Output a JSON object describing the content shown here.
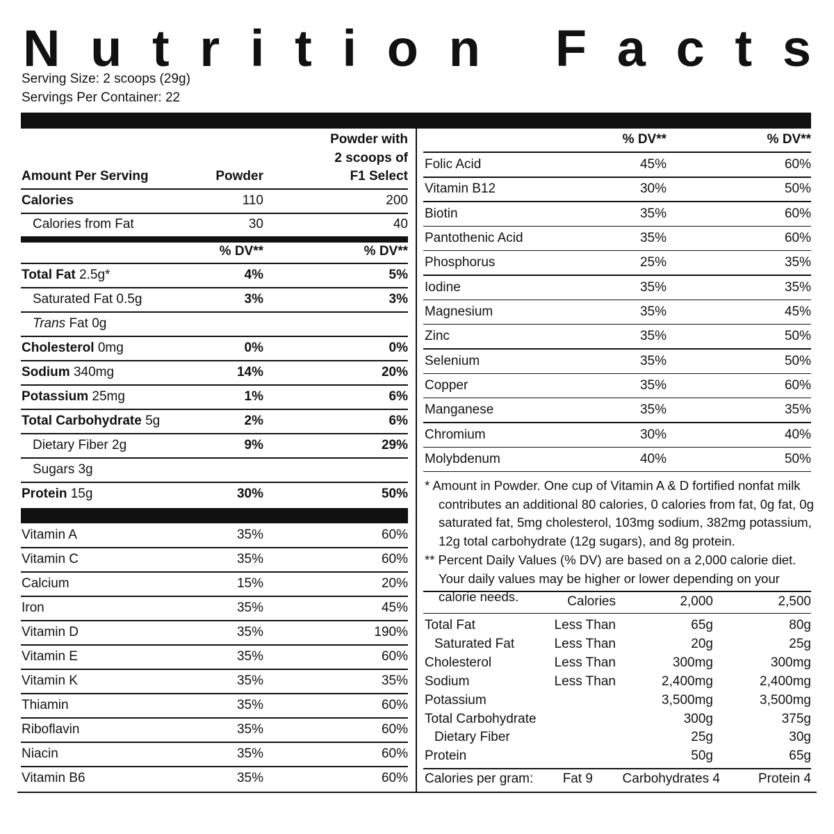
{
  "header": {
    "title": "Nutrition Facts",
    "serving_size": "Serving Size: 2 scoops (29g)",
    "servings_per_container": "Servings Per Container: 22"
  },
  "left": {
    "col_header": {
      "label": "Amount Per Serving",
      "powder": "Powder",
      "with_lines": [
        "Powder with",
        "2 scoops of",
        "F1 Select"
      ]
    },
    "calories": [
      {
        "name": "Calories",
        "bold": true,
        "powder": "110",
        "with": "200"
      },
      {
        "name": "Calories from Fat",
        "powder": "30",
        "with": "40"
      }
    ],
    "dv_header": [
      "% DV**",
      "% DV**"
    ],
    "nutrients": [
      {
        "name": "Total Fat",
        "bold": true,
        "amount": "2.5g*",
        "powder": "4%",
        "with": "5%"
      },
      {
        "name": "Saturated Fat",
        "amount": "0.5g",
        "powder": "3%",
        "with": "3%"
      },
      {
        "italic": "Trans",
        "name": "Fat",
        "amount": "0g",
        "powder": null,
        "with": null
      },
      {
        "name": "Cholesterol",
        "bold": true,
        "amount": "0mg",
        "powder": "0%",
        "with": "0%"
      },
      {
        "name": "Sodium",
        "bold": true,
        "amount": "340mg",
        "powder": "14%",
        "with": "20%"
      },
      {
        "name": "Potassium",
        "bold": true,
        "amount": "25mg",
        "powder": "1%",
        "with": "6%"
      },
      {
        "name": "Total Carbohydrate",
        "bold": true,
        "amount": "5g",
        "powder": "2%",
        "with": "6%"
      },
      {
        "name": "Dietary Fiber",
        "amount": "2g",
        "powder": "9%",
        "with": "29%"
      },
      {
        "name": "Sugars",
        "amount": "3g",
        "powder": null,
        "with": null
      },
      {
        "name": "Protein",
        "bold": true,
        "amount": "15g",
        "powder": "30%",
        "with": "50%"
      }
    ],
    "vitamins": [
      [
        "Vitamin A",
        "35%",
        "60%"
      ],
      [
        "Vitamin C",
        "35%",
        "60%"
      ],
      [
        "Calcium",
        "15%",
        "20%"
      ],
      [
        "Iron",
        "35%",
        "45%"
      ],
      [
        "Vitamin D",
        "35%",
        "190%"
      ],
      [
        "Vitamin E",
        "35%",
        "60%"
      ],
      [
        "Vitamin K",
        "35%",
        "35%"
      ],
      [
        "Thiamin",
        "35%",
        "60%"
      ],
      [
        "Riboflavin",
        "35%",
        "60%"
      ],
      [
        "Niacin",
        "35%",
        "60%"
      ],
      [
        "Vitamin B6",
        "35%",
        "60%"
      ]
    ]
  },
  "right": {
    "dv_header": [
      "% DV**",
      "% DV**"
    ],
    "minerals": [
      [
        "Folic Acid",
        "45%",
        "60%"
      ],
      [
        "Vitamin B12",
        "30%",
        "50%"
      ],
      [
        "Biotin",
        "35%",
        "60%"
      ],
      [
        "Pantothenic Acid",
        "35%",
        "60%"
      ],
      [
        "Phosphorus",
        "25%",
        "35%"
      ],
      [
        "Iodine",
        "35%",
        "35%"
      ],
      [
        "Magnesium",
        "35%",
        "45%"
      ],
      [
        "Zinc",
        "35%",
        "50%"
      ],
      [
        "Selenium",
        "35%",
        "50%"
      ],
      [
        "Copper",
        "35%",
        "60%"
      ],
      [
        "Manganese",
        "35%",
        "35%"
      ],
      [
        "Chromium",
        "30%",
        "40%"
      ],
      [
        "Molybdenum",
        "40%",
        "50%"
      ]
    ],
    "footnotes": [
      "* Amount in Powder. One cup of Vitamin A & D fortified nonfat milk contributes an additional 80 calories, 0 calories from fat, 0g fat, 0g saturated fat, 5mg cholesterol, 103mg sodium, 382mg potassium, 12g total carbohydrate (12g sugars), and 8g protein.",
      "** Percent Daily Values (% DV) are based on a 2,000 calorie diet. Your daily values may be higher or lower depending on your calorie needs."
    ],
    "dv_table": {
      "header": [
        "Calories",
        "2,000",
        "2,500"
      ],
      "rows": [
        [
          "Total Fat",
          "Less Than",
          "65g",
          "80g"
        ],
        [
          "Saturated Fat",
          "Less Than",
          "20g",
          "25g"
        ],
        [
          "Cholesterol",
          "Less Than",
          "300mg",
          "300mg"
        ],
        [
          "Sodium",
          "Less Than",
          "2,400mg",
          "2,400mg"
        ],
        [
          "Potassium",
          null,
          "3,500mg",
          "3,500mg"
        ],
        [
          "Total Carbohydrate",
          null,
          "300g",
          "375g"
        ],
        [
          "Dietary Fiber",
          null,
          "25g",
          "30g"
        ],
        [
          "Protein",
          null,
          "50g",
          "65g"
        ]
      ]
    },
    "calories_per_gram": [
      "Calories per gram:",
      "Fat 9",
      "Carbohydrates 4",
      "Protein 4"
    ]
  }
}
